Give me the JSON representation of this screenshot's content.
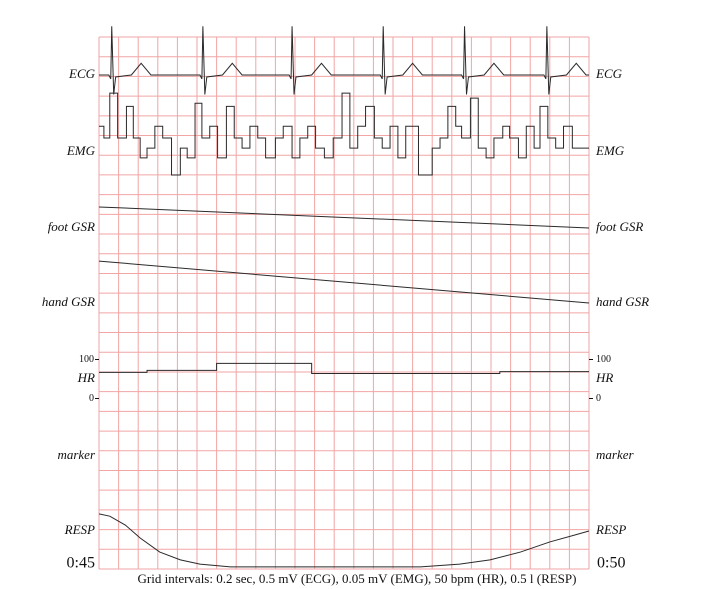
{
  "chart_data": {
    "type": "line",
    "xlim": [
      45,
      50
    ],
    "xticks": [
      {
        "value": 45,
        "label": "0:45"
      },
      {
        "value": 50,
        "label": "0:50"
      }
    ],
    "caption": "Grid intervals: 0.2 sec, 0.5 mV (ECG), 0.05 mV (EMG), 50 bpm (HR), 0.5 l (RESP)",
    "grid": true,
    "color": "#2a2a2a",
    "grid_color": "#f2a5a5",
    "channels": [
      {
        "name": "ECG",
        "ylim": [
          -1,
          1
        ],
        "x": [
          45.0,
          45.1,
          45.12,
          45.13,
          45.15,
          45.17,
          45.33,
          45.43,
          45.53,
          46.03,
          46.05,
          46.06,
          46.08,
          46.1,
          46.26,
          46.36,
          46.46,
          46.94,
          46.96,
          46.97,
          46.99,
          47.01,
          47.17,
          47.27,
          47.37,
          47.87,
          47.89,
          47.9,
          47.92,
          47.94,
          48.1,
          48.2,
          48.3,
          48.7,
          48.72,
          48.73,
          48.75,
          48.77,
          48.93,
          49.03,
          49.13,
          49.54,
          49.56,
          49.57,
          49.59,
          49.61,
          49.77,
          49.87,
          49.97,
          50.0
        ],
        "values": [
          0,
          0,
          -0.1,
          1.25,
          -0.5,
          -0.05,
          0,
          0.3,
          0,
          0,
          -0.1,
          1.25,
          -0.5,
          -0.05,
          0,
          0.3,
          0,
          0,
          -0.1,
          1.25,
          -0.5,
          -0.05,
          0,
          0.3,
          0,
          0,
          -0.1,
          1.25,
          -0.5,
          -0.05,
          0,
          0.3,
          0,
          0,
          -0.1,
          1.25,
          -0.5,
          -0.05,
          0,
          0.3,
          0,
          0,
          -0.1,
          1.25,
          -0.5,
          -0.05,
          0,
          0.3,
          0,
          0
        ]
      },
      {
        "name": "EMG",
        "ylim": [
          -0.1,
          0.1
        ],
        "step": true,
        "x": [
          45.0,
          45.05,
          45.11,
          45.19,
          45.28,
          45.35,
          45.42,
          45.49,
          45.57,
          45.65,
          45.74,
          45.83,
          45.9,
          45.98,
          46.05,
          46.13,
          46.21,
          46.3,
          46.38,
          46.46,
          46.54,
          46.62,
          46.7,
          46.8,
          46.88,
          46.97,
          47.05,
          47.13,
          47.21,
          47.3,
          47.39,
          47.48,
          47.56,
          47.64,
          47.72,
          47.81,
          47.89,
          47.97,
          48.05,
          48.13,
          48.26,
          48.4,
          48.48,
          48.56,
          48.64,
          48.7,
          48.79,
          48.87,
          48.95,
          49.03,
          49.12,
          49.19,
          49.28,
          49.36,
          49.44,
          49.5,
          49.58,
          49.66,
          49.74,
          49.83,
          49.91
        ],
        "values": [
          0.066,
          0.036,
          0.151,
          0.036,
          0.117,
          0.036,
          -0.015,
          0.01,
          0.066,
          0.036,
          -0.059,
          0.01,
          -0.015,
          0.125,
          0.036,
          0.066,
          -0.015,
          0.117,
          0.036,
          0.01,
          0.066,
          0.036,
          -0.015,
          0.036,
          0.066,
          -0.015,
          0.036,
          0.066,
          0.01,
          -0.015,
          0.036,
          0.151,
          0.01,
          0.066,
          0.117,
          0.036,
          0.01,
          0.066,
          -0.015,
          0.066,
          -0.059,
          0.01,
          0.036,
          0.117,
          0.066,
          0.036,
          0.138,
          0.01,
          -0.015,
          0.036,
          0.066,
          0.036,
          -0.015,
          0.066,
          0.01,
          0.117,
          0.036,
          0.01,
          0.066,
          0.01,
          0.01
        ]
      },
      {
        "name": "foot GSR",
        "ylim": [
          -2,
          2
        ],
        "x": [
          45,
          50
        ],
        "values": [
          1.08,
          0
        ]
      },
      {
        "name": "hand GSR",
        "ylim": [
          -2,
          2
        ],
        "x": [
          45,
          50
        ],
        "values": [
          2.15,
          0
        ]
      },
      {
        "name": "HR",
        "ylim": [
          -50,
          150
        ],
        "yticks": [
          0,
          100
        ],
        "step": true,
        "x": [
          45.0,
          45.49,
          46.2,
          47.17,
          49.09
        ],
        "values": [
          67,
          72,
          90,
          64,
          69
        ]
      },
      {
        "name": "marker"
      },
      {
        "name": "RESP",
        "ylim": [
          -1,
          1
        ],
        "x": [
          45.0,
          45.11,
          45.27,
          45.42,
          45.62,
          45.83,
          46.03,
          46.34,
          48.28,
          48.68,
          48.99,
          49.3,
          49.6,
          49.86,
          50.0
        ],
        "values": [
          0.44,
          0.38,
          0.15,
          -0.18,
          -0.54,
          -0.74,
          -0.85,
          -0.92,
          -0.92,
          -0.85,
          -0.74,
          -0.54,
          -0.28,
          -0.1,
          0
        ]
      }
    ]
  }
}
